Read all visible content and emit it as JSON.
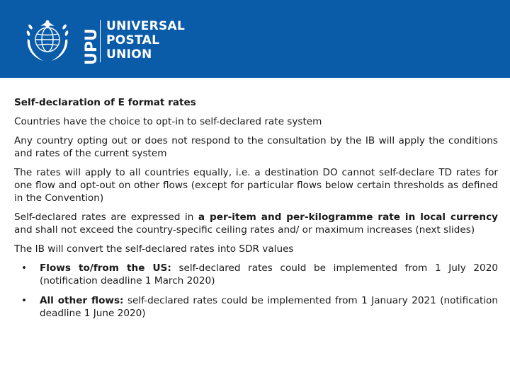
{
  "header": {
    "logo_abbrev": "UPU",
    "logo_lines": [
      "UNIVERSAL",
      "POSTAL",
      "UNION"
    ],
    "background_color": "#0a5ba8"
  },
  "slide": {
    "title": "Self-declaration of E format rates",
    "para1": "Countries have the choice to opt-in to self-declared rate system",
    "para2": "Any country opting out or does not respond to the consultation by the IB will apply the conditions and rates of the current system",
    "para3": "The rates will apply to all countries equally, i.e. a destination DO cannot self-declare TD rates for one flow and opt-out on other flows (except for particular flows below certain thresholds as defined in the Convention)",
    "para4": {
      "prefix": "Self-declared rates are expressed in ",
      "bold": "a per-item and per-kilogramme rate in local currency",
      "suffix": " and shall not exceed the country-specific ceiling rates and/ or maximum increases (next slides)"
    },
    "para5": "The IB will convert the self-declared rates into SDR values",
    "bullets": [
      {
        "bold": "Flows to/from the US:",
        "text": " self-declared rates could be implemented from 1 July 2020 (notification deadline 1 March 2020)"
      },
      {
        "bold": "All other flows:",
        "text": " self-declared rates could be implemented from 1 January 2021 (notification deadline 1 June 2020)"
      }
    ],
    "bullet_symbol": "•"
  }
}
